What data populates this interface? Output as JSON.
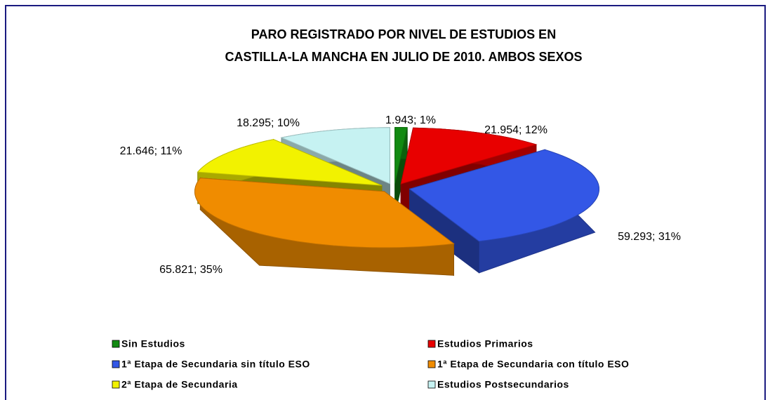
{
  "chart_data": {
    "type": "pie3d",
    "title": [
      "PARO REGISTRADO POR NIVEL DE ESTUDIOS EN",
      "CASTILLA-LA MANCHA EN JULIO DE 2010. AMBOS SEXOS"
    ],
    "categories": [
      "Sin Estudios",
      "Estudios Primarios",
      "1ª Etapa de Secundaria sin título ESO",
      "1ª Etapa de Secundaria con título ESO",
      "2ª Etapa de Secundaria",
      "Estudios Postsecundarios"
    ],
    "values": [
      1943,
      21954,
      59293,
      65821,
      21646,
      18295
    ],
    "value_labels": [
      "1.943; 1%",
      "21.954; 12%",
      "59.293; 31%",
      "65.821; 35%",
      "21.646; 11%",
      "18.295; 10%"
    ],
    "colors": [
      "#128a12",
      "#e80000",
      "#3357e6",
      "#f08c00",
      "#f2f200",
      "#c6f2f2"
    ],
    "legend": "bottom"
  }
}
